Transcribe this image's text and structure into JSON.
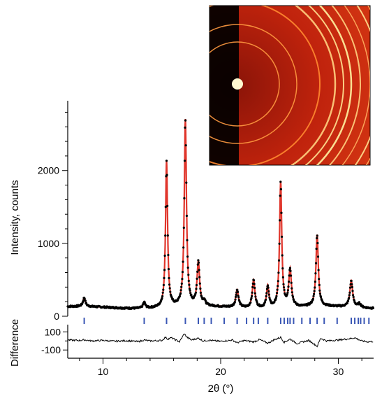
{
  "chart_data": [
    {
      "type": "scatter",
      "panel": "main",
      "ylabel": "Intensity, counts",
      "xlim": [
        7,
        33
      ],
      "ylim": [
        0,
        2900
      ],
      "y_tick_labels": [
        "0",
        "1000",
        "2000"
      ],
      "y_ticks": [
        0,
        1000,
        2000
      ],
      "peaks": [
        {
          "x": 8.4,
          "y": 240,
          "w": 0.15
        },
        {
          "x": 13.5,
          "y": 200,
          "w": 0.15
        },
        {
          "x": 15.4,
          "y": 2130,
          "w": 0.13
        },
        {
          "x": 17.0,
          "y": 2680,
          "w": 0.14
        },
        {
          "x": 18.1,
          "y": 720,
          "w": 0.16
        },
        {
          "x": 18.6,
          "y": 180,
          "w": 0.15
        },
        {
          "x": 21.4,
          "y": 360,
          "w": 0.17
        },
        {
          "x": 22.8,
          "y": 500,
          "w": 0.17
        },
        {
          "x": 24.0,
          "y": 420,
          "w": 0.15
        },
        {
          "x": 25.1,
          "y": 1840,
          "w": 0.14
        },
        {
          "x": 25.9,
          "y": 630,
          "w": 0.17
        },
        {
          "x": 28.2,
          "y": 1100,
          "w": 0.15
        },
        {
          "x": 31.1,
          "y": 480,
          "w": 0.18
        },
        {
          "x": 31.8,
          "y": 170,
          "w": 0.18
        }
      ],
      "background": 120,
      "series": [
        {
          "name": "observed",
          "color": "#000000"
        },
        {
          "name": "calculated",
          "color": "#e0352b"
        }
      ],
      "reflection_marks": [
        8.4,
        13.5,
        15.4,
        17.0,
        18.1,
        18.6,
        19.2,
        20.3,
        21.4,
        22.2,
        22.8,
        23.2,
        24.0,
        25.1,
        25.4,
        25.7,
        25.9,
        26.2,
        26.9,
        27.6,
        28.2,
        28.8,
        29.9,
        31.1,
        31.4,
        31.7,
        31.9,
        32.2,
        32.6
      ],
      "reflection_color": "#3a57b5"
    },
    {
      "type": "line",
      "panel": "difference",
      "ylabel": "Difference",
      "xlabel": "2θ (°)",
      "xlim": [
        7,
        33
      ],
      "ylim": [
        -160,
        180
      ],
      "y_tick_labels": [
        "100",
        "-100"
      ],
      "y_ticks": [
        100,
        -100
      ],
      "x_tick_labels": [
        "10",
        "20",
        "30"
      ],
      "x_ticks": [
        10,
        20,
        30
      ],
      "x": [
        7,
        8,
        8.4,
        9,
        10,
        11,
        12,
        13,
        13.5,
        14,
        15,
        15.3,
        15.5,
        15.8,
        16.5,
        16.9,
        17.1,
        17.5,
        18.1,
        18.5,
        19,
        20,
        21,
        21.4,
        22,
        22.8,
        23.3,
        24,
        24.5,
        25.1,
        25.4,
        25.9,
        26.5,
        27,
        27.5,
        28,
        28.2,
        28.5,
        29,
        30,
        31,
        31.4,
        32,
        32.5,
        33
      ],
      "y": [
        10,
        5,
        12,
        0,
        6,
        -4,
        3,
        -8,
        10,
        0,
        5,
        40,
        20,
        35,
        -10,
        80,
        45,
        10,
        30,
        0,
        8,
        -5,
        10,
        -20,
        5,
        -10,
        15,
        -25,
        10,
        40,
        -15,
        20,
        -30,
        -10,
        5,
        -40,
        -60,
        30,
        0,
        10,
        25,
        35,
        0,
        -10,
        -5
      ]
    }
  ],
  "inset": {
    "description_colors": [
      "#000000",
      "#d02510",
      "#ff8a30",
      "#fff2a0"
    ]
  }
}
